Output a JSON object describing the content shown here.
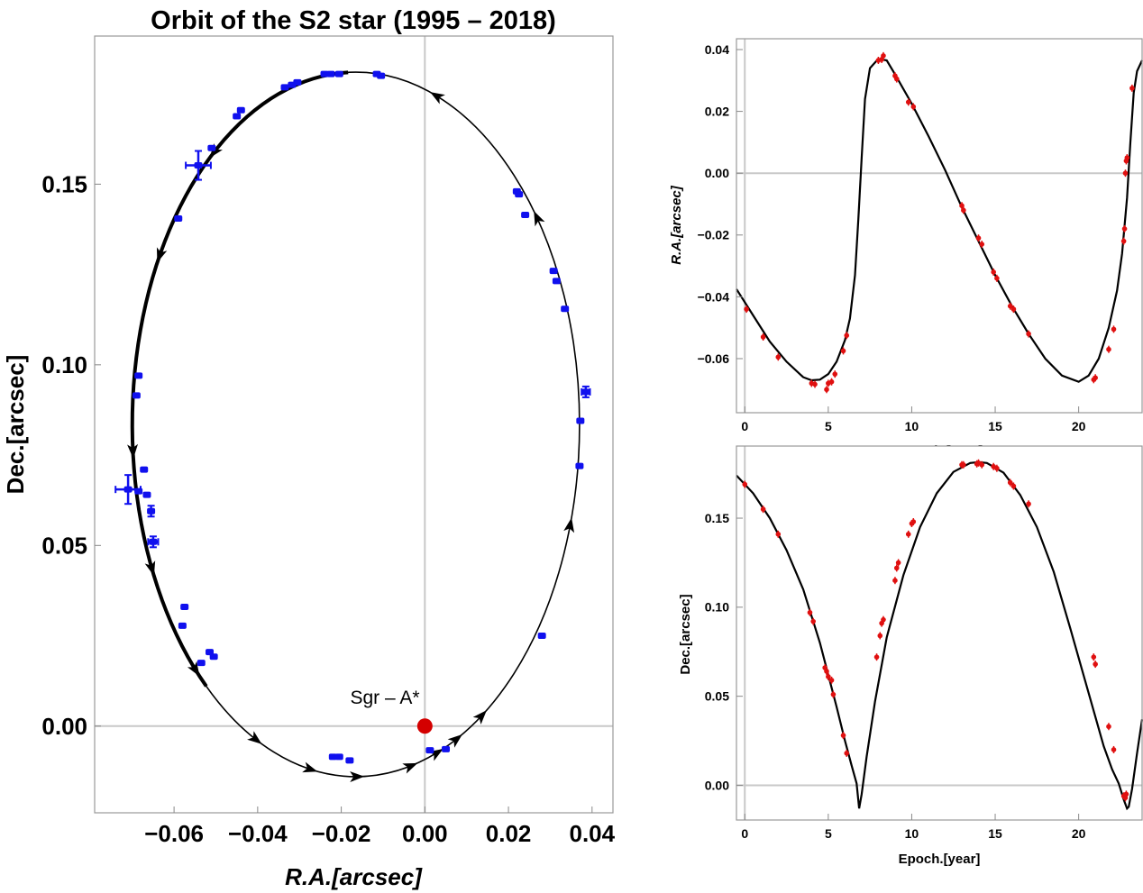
{
  "chart_data": [
    {
      "type": "scatter",
      "id": "orbit",
      "title": "Orbit of the S2 star (1995 – 2018)",
      "xlabel": "R.A.[arcsec]",
      "ylabel": "Dec.[arcsec]",
      "xlim": [
        -0.079,
        0.045
      ],
      "ylim": [
        -0.024,
        0.191
      ],
      "xticks": [
        -0.06,
        -0.04,
        -0.02,
        0.0,
        0.02,
        0.04
      ],
      "xtick_labels": [
        "−0.06",
        "−0.04",
        "−0.02",
        "0.00",
        "0.02",
        "0.04"
      ],
      "yticks": [
        0.0,
        0.05,
        0.1,
        0.15
      ],
      "ytick_labels": [
        "0.00",
        "0.05",
        "0.10",
        "0.15"
      ],
      "annotation": {
        "text": "Sgr – A*",
        "x": 0.0,
        "y": 0.0,
        "color": "#d40000"
      },
      "model_orbit": {
        "center": [
          -0.0165,
          0.0835
        ],
        "semi_axis_x": 0.0535,
        "semi_axis_y": 0.0975,
        "color": "#000000"
      },
      "direction_arrows": [
        {
          "x": -0.047,
          "y": 0.1507
        },
        {
          "x": -0.0626,
          "y": 0.129
        },
        {
          "x": -0.0688,
          "y": 0.0759
        },
        {
          "x": -0.0643,
          "y": 0.044
        },
        {
          "x": -0.052,
          "y": 0.02
        },
        {
          "x": -0.0387,
          "y": 0.0016
        },
        {
          "x": -0.0265,
          "y": -0.0066
        },
        {
          "x": -0.016,
          "y": -0.0122
        },
        {
          "x": -0.003,
          "y": -0.0117
        },
        {
          "x": 0.0035,
          "y": -0.009
        },
        {
          "x": 0.0085,
          "y": -0.006
        },
        {
          "x": 0.0155,
          "y": -0.0015
        },
        {
          "x": 0.0366,
          "y": 0.055
        },
        {
          "x": 0.035,
          "y": 0.152
        },
        {
          "x": 0.002,
          "y": 0.172
        }
      ],
      "series": [
        {
          "name": "observations",
          "color": "#1010ee",
          "points": [
            {
              "x": -0.0115,
              "y": 0.1805
            },
            {
              "x": -0.0105,
              "y": 0.18
            },
            {
              "x": -0.0205,
              "y": 0.1805
            },
            {
              "x": -0.0225,
              "y": 0.1805
            },
            {
              "x": -0.024,
              "y": 0.1805
            },
            {
              "x": -0.0305,
              "y": 0.1782
            },
            {
              "x": -0.0318,
              "y": 0.1775
            },
            {
              "x": -0.0335,
              "y": 0.1768
            },
            {
              "x": -0.044,
              "y": 0.1705
            },
            {
              "x": -0.045,
              "y": 0.1688
            },
            {
              "x": -0.051,
              "y": 0.16
            },
            {
              "x": -0.0542,
              "y": 0.1552,
              "ex": 0.003,
              "ey": 0.004
            },
            {
              "x": -0.059,
              "y": 0.1405
            },
            {
              "x": -0.0685,
              "y": 0.097
            },
            {
              "x": -0.069,
              "y": 0.0915
            },
            {
              "x": -0.0672,
              "y": 0.071
            },
            {
              "x": -0.071,
              "y": 0.0655,
              "ex": 0.003,
              "ey": 0.004
            },
            {
              "x": -0.0685,
              "y": 0.065
            },
            {
              "x": -0.0665,
              "y": 0.064
            },
            {
              "x": -0.0655,
              "y": 0.0595,
              "ey": 0.0015
            },
            {
              "x": -0.065,
              "y": 0.051,
              "ex": 0.0012,
              "ey": 0.0015
            },
            {
              "x": -0.0575,
              "y": 0.033
            },
            {
              "x": -0.058,
              "y": 0.0278
            },
            {
              "x": -0.0515,
              "y": 0.0205
            },
            {
              "x": -0.0505,
              "y": 0.0192
            },
            {
              "x": -0.0535,
              "y": 0.0175
            },
            {
              "x": -0.022,
              "y": -0.0085
            },
            {
              "x": -0.0205,
              "y": -0.0085
            },
            {
              "x": -0.018,
              "y": -0.0095
            },
            {
              "x": 0.0012,
              "y": -0.0067
            },
            {
              "x": 0.005,
              "y": -0.0064
            },
            {
              "x": 0.028,
              "y": 0.025
            },
            {
              "x": 0.037,
              "y": 0.072
            },
            {
              "x": 0.0372,
              "y": 0.0845
            },
            {
              "x": 0.0385,
              "y": 0.0925,
              "ex": 0.001,
              "ey": 0.0015
            },
            {
              "x": 0.0335,
              "y": 0.1155
            },
            {
              "x": 0.0315,
              "y": 0.1232
            },
            {
              "x": 0.0308,
              "y": 0.126
            },
            {
              "x": 0.024,
              "y": 0.1415
            },
            {
              "x": 0.0225,
              "y": 0.1472
            },
            {
              "x": 0.022,
              "y": 0.148
            }
          ]
        }
      ]
    },
    {
      "type": "line",
      "id": "ra_vs_epoch",
      "title": "",
      "xlabel": "Epoch.[year]",
      "ylabel": "R.A.[arcsec]",
      "xlim": [
        -0.5,
        23.8
      ],
      "ylim": [
        -0.0775,
        0.0435
      ],
      "xticks": [
        0,
        5,
        10,
        15,
        20
      ],
      "xtick_labels": [
        "0",
        "5",
        "10",
        "15",
        "20"
      ],
      "yticks": [
        -0.06,
        -0.04,
        -0.02,
        0.0,
        0.02,
        0.04
      ],
      "ytick_labels": [
        "−0.06",
        "−0.04",
        "−0.02",
        "0.00",
        "0.02",
        "0.04"
      ],
      "series": [
        {
          "name": "model",
          "color": "#000000",
          "x": [
            -0.5,
            0.5,
            1.5,
            2.5,
            3.5,
            4.0,
            4.5,
            5.0,
            5.5,
            6.0,
            6.3,
            6.6,
            6.8,
            7.0,
            7.2,
            7.5,
            8.0,
            8.5,
            9.0,
            10.0,
            11.0,
            12.0,
            13.0,
            14.0,
            15.0,
            16.0,
            17.0,
            18.0,
            19.0,
            20.0,
            20.6,
            21.2,
            21.8,
            22.3,
            22.6,
            22.9,
            23.1,
            23.3,
            23.5,
            23.8
          ],
          "y": [
            -0.0375,
            -0.046,
            -0.0545,
            -0.061,
            -0.066,
            -0.067,
            -0.0668,
            -0.065,
            -0.061,
            -0.054,
            -0.047,
            -0.033,
            -0.015,
            0.005,
            0.024,
            0.034,
            0.037,
            0.0365,
            0.032,
            0.0225,
            0.012,
            0.001,
            -0.011,
            -0.022,
            -0.033,
            -0.043,
            -0.052,
            -0.06,
            -0.0655,
            -0.0675,
            -0.0655,
            -0.06,
            -0.05,
            -0.038,
            -0.026,
            -0.008,
            0.01,
            0.026,
            0.033,
            0.0365
          ]
        },
        {
          "name": "data",
          "color": "#e01010",
          "x": [
            0.1,
            1.1,
            2.0,
            4.0,
            4.2,
            4.9,
            5.0,
            5.2,
            5.4,
            5.9,
            6.1,
            8.0,
            8.2,
            8.3,
            9.0,
            9.1,
            9.8,
            10.1,
            13.0,
            13.1,
            14.0,
            14.2,
            14.9,
            15.1,
            15.9,
            16.1,
            17.0,
            20.9,
            21.0,
            21.8,
            22.1,
            22.7,
            22.75,
            22.8,
            22.85,
            22.9,
            23.2
          ],
          "y": [
            -0.044,
            -0.053,
            -0.0595,
            -0.068,
            -0.0683,
            -0.07,
            -0.068,
            -0.0675,
            -0.065,
            -0.0575,
            -0.0525,
            0.0365,
            0.0368,
            0.038,
            0.0315,
            0.0305,
            0.023,
            0.0215,
            -0.0105,
            -0.012,
            -0.021,
            -0.023,
            -0.032,
            -0.034,
            -0.043,
            -0.044,
            -0.052,
            -0.0668,
            -0.0662,
            -0.057,
            -0.0505,
            -0.022,
            -0.018,
            0.0,
            0.004,
            0.005,
            0.0275
          ]
        }
      ]
    },
    {
      "type": "line",
      "id": "dec_vs_epoch",
      "title": "",
      "xlabel": "Epoch.[year]",
      "ylabel": "Dec.[arcsec]",
      "xlim": [
        -0.5,
        23.8
      ],
      "ylim": [
        -0.0195,
        0.1905
      ],
      "xticks": [
        0,
        5,
        10,
        15,
        20
      ],
      "xtick_labels": [
        "0",
        "5",
        "10",
        "15",
        "20"
      ],
      "yticks": [
        0.0,
        0.05,
        0.1,
        0.15
      ],
      "ytick_labels": [
        "0.00",
        "0.05",
        "0.10",
        "0.15"
      ],
      "series": [
        {
          "name": "model",
          "color": "#000000",
          "x": [
            -0.5,
            0.5,
            1.5,
            2.5,
            3.5,
            4.5,
            5.5,
            6.0,
            6.4,
            6.7,
            6.85,
            7.0,
            7.3,
            7.8,
            8.5,
            9.5,
            10.5,
            11.5,
            12.5,
            13.5,
            14.0,
            14.5,
            15.5,
            16.5,
            17.5,
            18.5,
            19.5,
            20.5,
            21.5,
            22.0,
            22.4,
            22.7,
            22.9,
            23.0,
            23.2,
            23.5,
            23.8
          ],
          "y": [
            0.174,
            0.164,
            0.15,
            0.132,
            0.11,
            0.08,
            0.044,
            0.025,
            0.011,
            0.001,
            -0.013,
            -0.005,
            0.016,
            0.047,
            0.083,
            0.118,
            0.145,
            0.164,
            0.176,
            0.181,
            0.1815,
            0.181,
            0.1755,
            0.163,
            0.145,
            0.12,
            0.088,
            0.055,
            0.022,
            0.009,
            0.001,
            -0.008,
            -0.013,
            -0.012,
            -0.002,
            0.018,
            0.037
          ]
        },
        {
          "name": "data",
          "color": "#e01010",
          "x": [
            0.0,
            1.1,
            2.0,
            3.9,
            4.1,
            4.8,
            4.9,
            5.0,
            5.2,
            5.3,
            5.9,
            6.1,
            7.9,
            8.1,
            8.2,
            8.3,
            9.0,
            9.1,
            9.2,
            9.8,
            10.0,
            10.1,
            13.0,
            13.1,
            13.9,
            14.0,
            14.2,
            14.9,
            15.1,
            15.9,
            16.1,
            17.0,
            20.9,
            21.0,
            21.8,
            22.1,
            22.7,
            22.8,
            22.85
          ],
          "y": [
            0.169,
            0.155,
            0.141,
            0.097,
            0.092,
            0.066,
            0.064,
            0.061,
            0.059,
            0.051,
            0.028,
            0.018,
            0.072,
            0.084,
            0.091,
            0.093,
            0.115,
            0.122,
            0.125,
            0.141,
            0.147,
            0.148,
            0.18,
            0.18,
            0.1805,
            0.181,
            0.18,
            0.179,
            0.178,
            0.17,
            0.168,
            0.158,
            0.072,
            0.068,
            0.033,
            0.02,
            -0.006,
            -0.007,
            -0.005
          ]
        }
      ]
    }
  ]
}
